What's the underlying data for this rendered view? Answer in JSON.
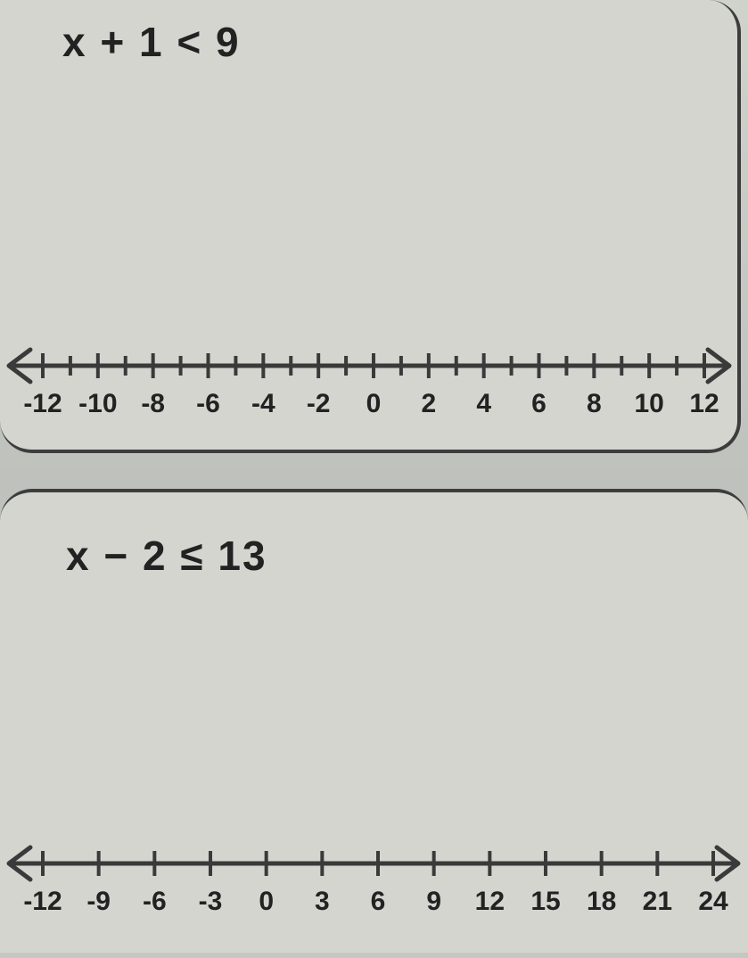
{
  "panel1": {
    "expression": "x + 1 < 9",
    "numberline": {
      "min": -12,
      "max": 12,
      "tick_step": 1,
      "label_step": 2,
      "labels": [
        "-12",
        "-10",
        "-8",
        "-6",
        "-4",
        "-2",
        "0",
        "2",
        "4",
        "6",
        "8",
        "10",
        "12"
      ],
      "axis_color": "#3a3a3a",
      "tick_color": "#3a3a3a",
      "label_color": "#222222",
      "axis_stroke": 5,
      "tick_height_major": 28,
      "tick_height_minor": 22,
      "arrow_size": 20
    }
  },
  "panel2": {
    "expression": "x − 2 ≤ 13",
    "numberline": {
      "min": -12,
      "max": 24,
      "tick_step": 3,
      "label_step": 3,
      "labels": [
        "-12",
        "-9",
        "-6",
        "-3",
        "0",
        "3",
        "6",
        "9",
        "12",
        "15",
        "18",
        "21",
        "24"
      ],
      "axis_color": "#3a3a3a",
      "tick_color": "#3a3a3a",
      "label_color": "#222222",
      "axis_stroke": 5,
      "tick_height_major": 28,
      "arrow_size": 20
    }
  },
  "style": {
    "background_color": "#c2c5c0",
    "panel_background": "#d4d5cf",
    "panel_border_color": "#3d3d3d",
    "panel_border_width": 4,
    "panel_radius": 36,
    "expr_font_size": 46,
    "expr_color": "#222222",
    "label_font_size": 30
  }
}
